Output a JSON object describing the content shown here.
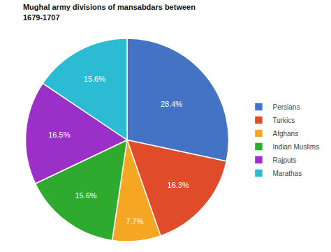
{
  "chart_data": {
    "type": "pie",
    "title": "Mughal army divisions of mansabdars between\n1679-1707",
    "categories": [
      "Persians",
      "Turkics",
      "Afghans",
      "Indian Muslims",
      "Rajputs",
      "Marathas"
    ],
    "values": [
      28.4,
      16.3,
      7.7,
      15.6,
      16.5,
      15.6
    ],
    "value_labels": [
      "28.4%",
      "16.3%",
      "7.7%",
      "15.6%",
      "16.5%",
      "15.6%"
    ],
    "colors": [
      "#4472C4",
      "#E04B2A",
      "#F5A623",
      "#2EAA2E",
      "#9B30C8",
      "#2BBCD4"
    ],
    "data_labels": true,
    "legend": "right"
  }
}
